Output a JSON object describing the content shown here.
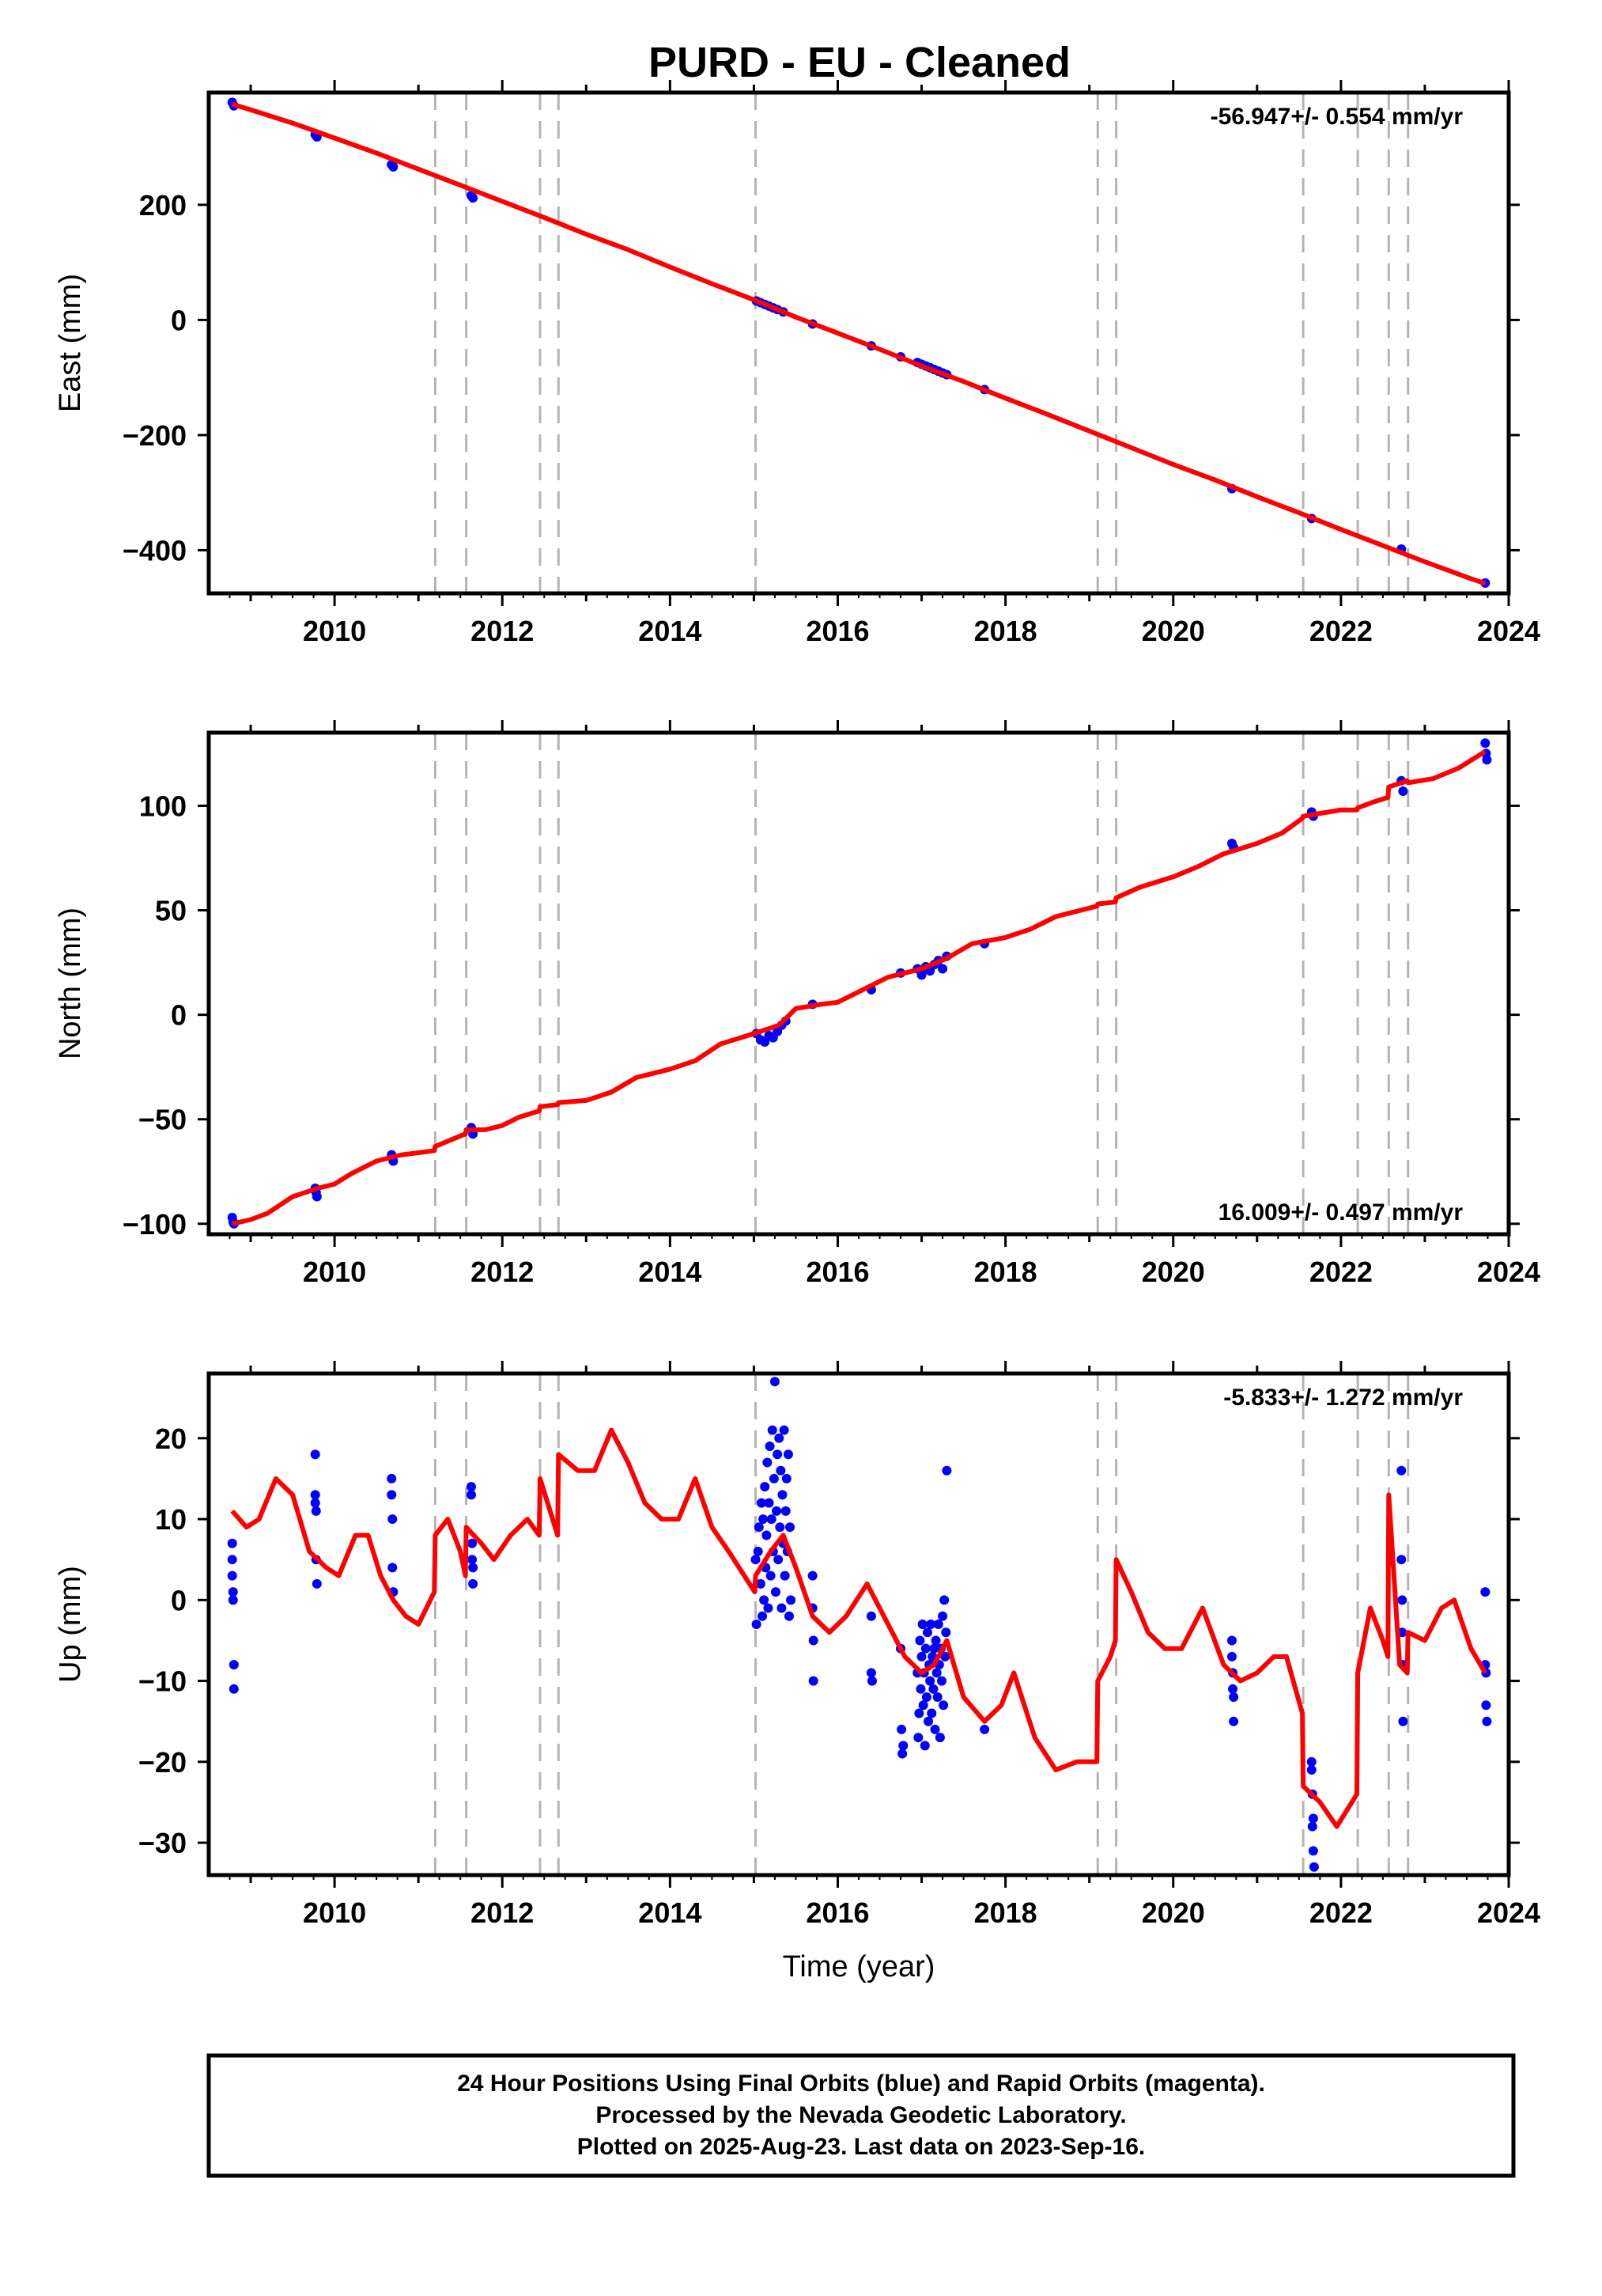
{
  "title": "PURD  - EU - Cleaned",
  "colors": {
    "model": "#ff0000",
    "final_orbits": "#0000ff",
    "offset_line": "#b4b4b4",
    "frame": "#000000"
  },
  "footer": {
    "line1": "24 Hour Positions Using Final Orbits (blue) and Rapid Orbits (magenta).",
    "line2": "Processed by the Nevada Geodetic Laboratory.",
    "line3": "Plotted on 2025-Aug-23. Last data on 2023-Sep-16."
  },
  "chart_data": [
    {
      "type": "scatter",
      "panel": "east",
      "ylabel": "East (mm)",
      "xlabel": "",
      "rate": "-56.947+/- 0.554 mm/yr",
      "rate_position": "top-right",
      "xlim": [
        2008.5,
        2024
      ],
      "ylim": [
        -475,
        395
      ],
      "x_ticks": [
        2010,
        2012,
        2014,
        2016,
        2018,
        2020,
        2022,
        2024
      ],
      "y_ticks": [
        -400,
        -200,
        0,
        200
      ],
      "offsets": [
        2011.2,
        2011.57,
        2012.45,
        2012.67,
        2015.02,
        2019.1,
        2019.32,
        2021.55,
        2022.2,
        2022.57,
        2022.8
      ],
      "model": {
        "x": [
          2008.78,
          2009.0,
          2009.5,
          2010.0,
          2010.5,
          2011.0,
          2011.5,
          2012.0,
          2012.5,
          2013.0,
          2013.5,
          2014.0,
          2014.5,
          2015.0,
          2015.5,
          2016.0,
          2016.5,
          2017.0,
          2017.5,
          2018.0,
          2018.5,
          2019.0,
          2019.5,
          2020.0,
          2020.5,
          2021.0,
          2021.5,
          2022.0,
          2022.5,
          2023.0,
          2023.5,
          2023.72
        ],
        "y": [
          375,
          365,
          342,
          316,
          290,
          262,
          234,
          206,
          178,
          149,
          122,
          92,
          63,
          35,
          5,
          -23,
          -51,
          -80,
          -107,
          -136,
          -164,
          -193,
          -222,
          -251,
          -278,
          -307,
          -335,
          -364,
          -392,
          -420,
          -447,
          -458
        ]
      },
      "points": {
        "x": [
          2008.78,
          2008.8,
          2009.77,
          2009.79,
          2010.68,
          2010.7,
          2011.63,
          2011.65,
          2015.03,
          2015.08,
          2015.13,
          2015.18,
          2015.23,
          2015.28,
          2015.35,
          2015.7,
          2016.4,
          2016.75,
          2016.95,
          2017.0,
          2017.05,
          2017.1,
          2017.15,
          2017.2,
          2017.25,
          2017.3,
          2017.75,
          2020.7,
          2021.65,
          2022.72,
          2023.72
        ],
        "y": [
          378,
          372,
          322,
          318,
          270,
          266,
          216,
          212,
          33,
          30,
          27,
          24,
          21,
          18,
          14,
          -7,
          -45,
          -64,
          -74,
          -77,
          -80,
          -83,
          -86,
          -89,
          -92,
          -95,
          -121,
          -293,
          -345,
          -398,
          -457
        ]
      }
    },
    {
      "type": "scatter",
      "panel": "north",
      "ylabel": "North (mm)",
      "xlabel": "",
      "rate": "16.009+/- 0.497 mm/yr",
      "rate_position": "bottom-right",
      "xlim": [
        2008.5,
        2024
      ],
      "ylim": [
        -105,
        135
      ],
      "x_ticks": [
        2010,
        2012,
        2014,
        2016,
        2018,
        2020,
        2022,
        2024
      ],
      "y_ticks": [
        -100,
        -50,
        0,
        50,
        100
      ],
      "offsets": [
        2011.2,
        2011.57,
        2012.45,
        2012.67,
        2015.02,
        2019.1,
        2019.32,
        2021.55,
        2022.2,
        2022.57,
        2022.8
      ],
      "model": {
        "x": [
          2008.78,
          2009.0,
          2009.2,
          2009.5,
          2009.8,
          2010.0,
          2010.2,
          2010.5,
          2010.8,
          2011.0,
          2011.19,
          2011.2,
          2011.5,
          2011.56,
          2011.57,
          2011.8,
          2012.0,
          2012.2,
          2012.44,
          2012.45,
          2012.66,
          2012.67,
          2013.0,
          2013.3,
          2013.6,
          2014.0,
          2014.3,
          2014.6,
          2015.0,
          2015.3,
          2015.5,
          2015.8,
          2016.0,
          2016.3,
          2016.6,
          2017.0,
          2017.3,
          2017.6,
          2018.0,
          2018.3,
          2018.6,
          2019.09,
          2019.1,
          2019.31,
          2019.32,
          2019.6,
          2020.0,
          2020.3,
          2020.6,
          2021.0,
          2021.3,
          2021.54,
          2021.55,
          2022.0,
          2022.19,
          2022.2,
          2022.4,
          2022.56,
          2022.57,
          2022.79,
          2022.8,
          2023.1,
          2023.4,
          2023.72
        ],
        "y": [
          -100,
          -98,
          -95,
          -87,
          -83,
          -81,
          -76,
          -70,
          -67,
          -66,
          -65,
          -63,
          -58,
          -57,
          -55,
          -55,
          -53,
          -49,
          -46,
          -44,
          -43,
          -42,
          -41,
          -37,
          -30,
          -26,
          -22,
          -14,
          -9,
          -5,
          3,
          5,
          6,
          12,
          18,
          22,
          27,
          34,
          37,
          41,
          47,
          52,
          53,
          54,
          56,
          61,
          66,
          71,
          77,
          82,
          87,
          94,
          95,
          98,
          98,
          99,
          102,
          104,
          109,
          112,
          111,
          113,
          118,
          126
        ]
      },
      "points": {
        "x": [
          2008.78,
          2008.79,
          2008.8,
          2009.77,
          2009.78,
          2009.79,
          2010.68,
          2010.7,
          2011.63,
          2011.65,
          2015.03,
          2015.08,
          2015.13,
          2015.18,
          2015.23,
          2015.28,
          2015.33,
          2015.38,
          2015.7,
          2016.4,
          2016.75,
          2016.95,
          2017.0,
          2017.05,
          2017.1,
          2017.15,
          2017.2,
          2017.25,
          2017.3,
          2017.75,
          2020.7,
          2020.72,
          2021.65,
          2021.67,
          2022.72,
          2022.74,
          2023.72,
          2023.73,
          2023.74
        ],
        "y": [
          -97,
          -99,
          -100,
          -83,
          -85,
          -87,
          -67,
          -70,
          -54,
          -57,
          -9,
          -12,
          -13,
          -10,
          -11,
          -8,
          -5,
          -3,
          5,
          12,
          20,
          22,
          19,
          23,
          21,
          24,
          26,
          22,
          28,
          34,
          82,
          80,
          97,
          95,
          112,
          107,
          130,
          125,
          122
        ]
      }
    },
    {
      "type": "scatter",
      "panel": "up",
      "ylabel": "Up (mm)",
      "xlabel": "Time (year)",
      "rate": "-5.833+/- 1.272 mm/yr",
      "rate_position": "top-right",
      "xlim": [
        2008.5,
        2024
      ],
      "ylim": [
        -34,
        28
      ],
      "x_ticks": [
        2010,
        2012,
        2014,
        2016,
        2018,
        2020,
        2022,
        2024
      ],
      "y_ticks": [
        -30,
        -20,
        -10,
        0,
        10,
        20
      ],
      "offsets": [
        2011.2,
        2011.57,
        2012.45,
        2012.67,
        2015.02,
        2019.1,
        2019.32,
        2021.55,
        2022.2,
        2022.57,
        2022.8
      ],
      "model": {
        "x": [
          2008.78,
          2008.95,
          2009.1,
          2009.3,
          2009.5,
          2009.7,
          2009.9,
          2010.05,
          2010.25,
          2010.4,
          2010.55,
          2010.7,
          2010.85,
          2011.0,
          2011.19,
          2011.2,
          2011.35,
          2011.5,
          2011.56,
          2011.57,
          2011.75,
          2011.9,
          2012.1,
          2012.3,
          2012.44,
          2012.45,
          2012.6,
          2012.66,
          2012.67,
          2012.9,
          2013.1,
          2013.3,
          2013.5,
          2013.7,
          2013.9,
          2014.1,
          2014.3,
          2014.5,
          2014.7,
          2015.01,
          2015.02,
          2015.2,
          2015.35,
          2015.5,
          2015.7,
          2015.9,
          2016.1,
          2016.35,
          2016.6,
          2016.8,
          2017.0,
          2017.15,
          2017.3,
          2017.5,
          2017.75,
          2017.95,
          2018.1,
          2018.35,
          2018.6,
          2018.85,
          2019.09,
          2019.1,
          2019.25,
          2019.31,
          2019.32,
          2019.5,
          2019.7,
          2019.9,
          2020.1,
          2020.35,
          2020.6,
          2020.8,
          2021.0,
          2021.2,
          2021.35,
          2021.54,
          2021.55,
          2021.75,
          2021.95,
          2022.19,
          2022.2,
          2022.35,
          2022.5,
          2022.56,
          2022.57,
          2022.7,
          2022.79,
          2022.8,
          2023.0,
          2023.2,
          2023.35,
          2023.55,
          2023.72
        ],
        "y": [
          11,
          9,
          10,
          15,
          13,
          6,
          4,
          3,
          8,
          8,
          3,
          0,
          -2,
          -3,
          1,
          8,
          10,
          6,
          3,
          9,
          7,
          5,
          8,
          10,
          8,
          15,
          10,
          8,
          18,
          16,
          16,
          21,
          17,
          12,
          10,
          10,
          15,
          9,
          6,
          1,
          3,
          6,
          8,
          4,
          -2,
          -4,
          -2,
          2,
          -3,
          -7,
          -9,
          -8,
          -5,
          -12,
          -15,
          -13,
          -9,
          -17,
          -21,
          -20,
          -20,
          -10,
          -7,
          -5,
          5,
          1,
          -4,
          -6,
          -6,
          -1,
          -8,
          -10,
          -9,
          -7,
          -7,
          -14,
          -23,
          -25,
          -28,
          -24,
          -9,
          -1,
          -5,
          -7,
          13,
          -8,
          -9,
          -4,
          -5,
          -1,
          0,
          -6,
          -9
        ]
      },
      "points": {
        "x": [
          2008.78,
          2008.78,
          2008.78,
          2008.79,
          2008.79,
          2008.8,
          2008.8,
          2009.77,
          2009.77,
          2009.77,
          2009.78,
          2009.78,
          2009.79,
          2010.68,
          2010.68,
          2010.69,
          2010.69,
          2010.7,
          2011.63,
          2011.63,
          2011.64,
          2011.64,
          2011.65,
          2011.65,
          2015.02,
          2015.03,
          2015.05,
          2015.06,
          2015.08,
          2015.09,
          2015.1,
          2015.11,
          2015.12,
          2015.13,
          2015.14,
          2015.15,
          2015.16,
          2015.17,
          2015.18,
          2015.19,
          2015.2,
          2015.21,
          2015.22,
          2015.23,
          2015.24,
          2015.25,
          2015.26,
          2015.27,
          2015.28,
          2015.29,
          2015.3,
          2015.31,
          2015.32,
          2015.33,
          2015.34,
          2015.35,
          2015.36,
          2015.37,
          2015.38,
          2015.39,
          2015.4,
          2015.41,
          2015.42,
          2015.43,
          2015.44,
          2015.7,
          2015.7,
          2015.71,
          2015.71,
          2016.4,
          2016.4,
          2016.41,
          2016.75,
          2016.76,
          2016.77,
          2016.78,
          2016.95,
          2016.96,
          2016.97,
          2016.98,
          2016.99,
          2017.0,
          2017.01,
          2017.02,
          2017.03,
          2017.04,
          2017.05,
          2017.06,
          2017.07,
          2017.08,
          2017.09,
          2017.1,
          2017.11,
          2017.12,
          2017.13,
          2017.14,
          2017.15,
          2017.16,
          2017.17,
          2017.18,
          2017.19,
          2017.2,
          2017.21,
          2017.22,
          2017.23,
          2017.24,
          2017.25,
          2017.26,
          2017.27,
          2017.28,
          2017.29,
          2017.3,
          2017.75,
          2020.7,
          2020.7,
          2020.71,
          2020.71,
          2020.72,
          2020.72,
          2021.65,
          2021.65,
          2021.66,
          2021.66,
          2021.67,
          2021.67,
          2021.68,
          2022.72,
          2022.72,
          2022.73,
          2022.73,
          2022.74,
          2022.74,
          2023.72,
          2023.72,
          2023.73,
          2023.73,
          2023.74
        ],
        "y": [
          7,
          5,
          3,
          1,
          0,
          -8,
          -11,
          18,
          13,
          12,
          11,
          5,
          2,
          15,
          13,
          10,
          4,
          1,
          14,
          13,
          7,
          5,
          4,
          2,
          5,
          -3,
          6,
          9,
          2,
          12,
          -2,
          10,
          0,
          14,
          4,
          8,
          17,
          -1,
          12,
          19,
          3,
          10,
          21,
          6,
          15,
          27,
          1,
          11,
          18,
          5,
          20,
          9,
          16,
          -1,
          13,
          7,
          21,
          3,
          11,
          15,
          6,
          18,
          -2,
          9,
          0,
          3,
          -1,
          -5,
          -10,
          -2,
          -9,
          -10,
          -6,
          -16,
          -19,
          -18,
          -9,
          -17,
          -14,
          -5,
          -11,
          -7,
          -3,
          -13,
          -9,
          -18,
          -6,
          -12,
          -4,
          -15,
          -8,
          -10,
          -3,
          -14,
          -7,
          -11,
          -6,
          -16,
          -5,
          -9,
          -12,
          -3,
          -8,
          -17,
          -6,
          -10,
          -2,
          -13,
          0,
          -7,
          -4,
          16,
          -16,
          -5,
          -7,
          -9,
          -11,
          -12,
          -15,
          -20,
          -21,
          -24,
          -28,
          -27,
          -31,
          -33,
          16,
          5,
          0,
          -4,
          -8,
          -15,
          1,
          -8,
          -9,
          -13,
          -15
        ]
      }
    }
  ]
}
